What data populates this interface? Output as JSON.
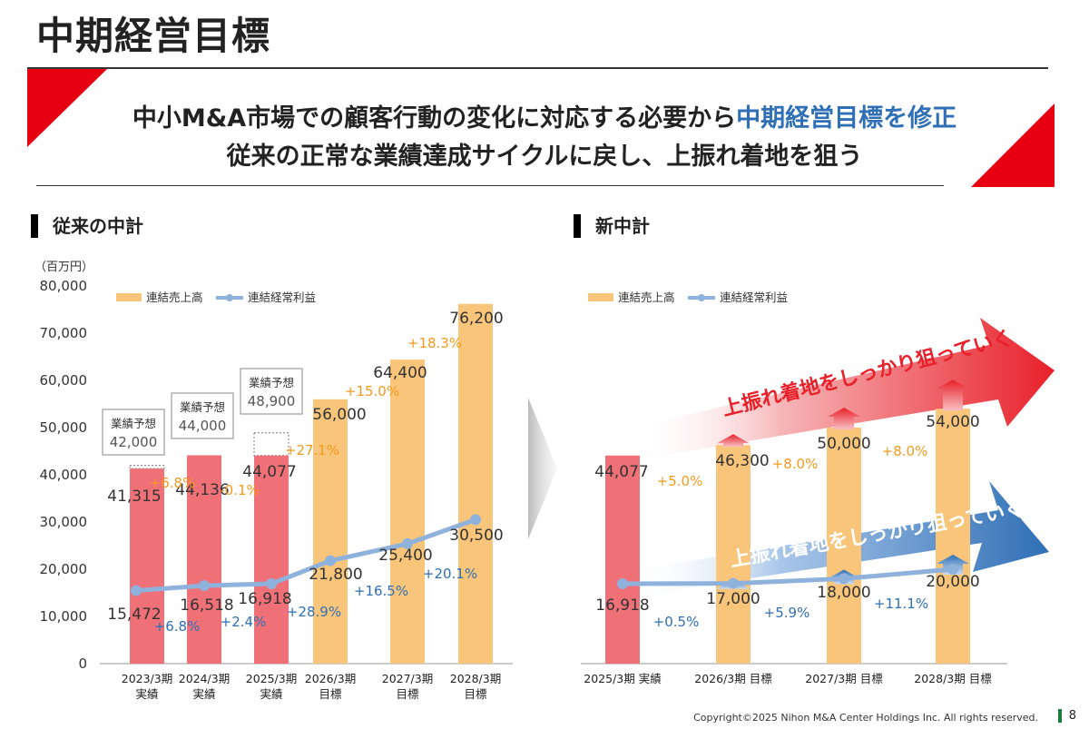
{
  "page": {
    "title": "中期経営目標",
    "message_line1_prefix": "中小M&A市場での顧客行動の変化に対応する必要から",
    "message_line1_accent": "中期経営目標を修正",
    "message_line2": "従来の正常な業績達成サイクルに戻し、上振れ着地を狙う",
    "left_section": "従来の中計",
    "right_section": "新中計",
    "unit": "（百万円）",
    "footer": "Copyright©2025 Nihon M&A Center Holdings Inc. All rights reserved.",
    "page_number": "8",
    "colors": {
      "actual": "#f07077",
      "target": "#f8c57a",
      "line": "#8fb2dd",
      "orange": "#f39a1e",
      "blue": "#2f6fb5",
      "red": "#e8202a"
    }
  },
  "chart_data": [
    {
      "type": "bar",
      "name": "old-plan",
      "categories": [
        "2023/3期\n実績",
        "2024/3期\n実績",
        "2025/3期\n実績",
        "2026/3期\n目標",
        "2027/3期\n目標",
        "2028/3期\n目標"
      ],
      "y_ticks": [
        "0",
        "10,000",
        "20,000",
        "30,000",
        "40,000",
        "50,000",
        "60,000",
        "70,000",
        "80,000"
      ],
      "ylim": [
        0,
        80000
      ],
      "legend": [
        "連結売上高",
        "連結経常利益"
      ],
      "series": [
        {
          "name": "連結売上高",
          "values": [
            41315,
            44136,
            44077,
            56000,
            64400,
            76200
          ],
          "labels": [
            "41,315",
            "44,136",
            "44,077",
            "56,000",
            "64,400",
            "76,200"
          ],
          "growth": [
            "",
            "+6.8%",
            "-0.1%",
            "+27.1%",
            "+15.0%",
            "+18.3%"
          ],
          "kinds": [
            "actual",
            "actual",
            "actual",
            "target",
            "target",
            "target"
          ]
        },
        {
          "name": "連結経常利益",
          "values": [
            15472,
            16518,
            16918,
            21800,
            25400,
            30500
          ],
          "labels": [
            "15,472",
            "16,518",
            "16,918",
            "21,800",
            "25,400",
            "30,500"
          ],
          "growth": [
            "",
            "+6.8%",
            "+2.4%",
            "+28.9%",
            "+16.5%",
            "+20.1%"
          ]
        }
      ],
      "forecasts": [
        {
          "title": "業績予想",
          "value": 42000,
          "label": "42,000"
        },
        {
          "title": "業績予想",
          "value": 44000,
          "label": "44,000"
        },
        {
          "title": "業績予想",
          "value": 48900,
          "label": "48,900"
        }
      ]
    },
    {
      "type": "bar",
      "name": "new-plan",
      "categories": [
        "2025/3期 実績",
        "2026/3期 目標",
        "2027/3期 目標",
        "2028/3期 目標"
      ],
      "ylim": [
        0,
        80000
      ],
      "legend": [
        "連結売上高",
        "連結経常利益"
      ],
      "series": [
        {
          "name": "連結売上高",
          "values": [
            44077,
            46300,
            50000,
            54000
          ],
          "labels": [
            "44,077",
            "46,300",
            "50,000",
            "54,000"
          ],
          "growth": [
            "+5.0%",
            "+8.0%",
            "+8.0%",
            ""
          ],
          "kinds": [
            "actual",
            "target",
            "target",
            "target"
          ]
        },
        {
          "name": "連結経常利益",
          "values": [
            16918,
            17000,
            18000,
            20000
          ],
          "labels": [
            "16,918",
            "17,000",
            "18,000",
            "20,000"
          ],
          "growth": [
            "+0.5%",
            "+5.9%",
            "+11.1%",
            ""
          ]
        }
      ],
      "annotations": [
        "上振れ着地をしっかり狙っていく",
        "上振れ着地をしっかり狙っていく"
      ]
    }
  ]
}
